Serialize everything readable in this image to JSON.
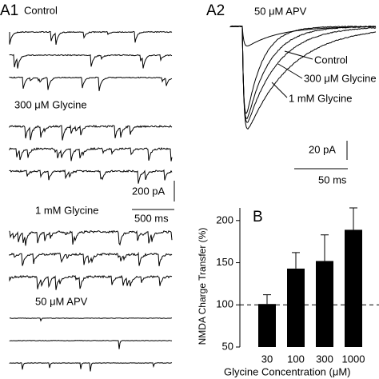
{
  "panel_a1": {
    "label": "A1",
    "conditions": [
      "Control",
      "300 μM Glycine",
      "1 mM Glycine",
      "50 μM APV"
    ],
    "scale_y": "200 pA",
    "scale_x": "500 ms"
  },
  "panel_a2": {
    "label": "A2",
    "apv_label": "50 μM APV",
    "trace_labels": [
      "Control",
      "300 μM Glycine",
      "1 mM Glycine"
    ],
    "scale_y": "20 pA",
    "scale_x": "50 ms"
  },
  "chart_data": {
    "type": "bar",
    "panel_label": "B",
    "y_label": "NMDA Charge Transfer (%)",
    "x_label": "Glycine Concentration (μM)",
    "categories": [
      "30",
      "100",
      "300",
      "1000"
    ],
    "values": [
      101,
      143,
      152,
      189
    ],
    "errors": [
      11,
      19,
      31,
      26
    ],
    "color": "#000000",
    "ylim": [
      50,
      215
    ],
    "yticks": [
      50,
      100,
      150,
      200
    ],
    "reference_line": 100
  }
}
